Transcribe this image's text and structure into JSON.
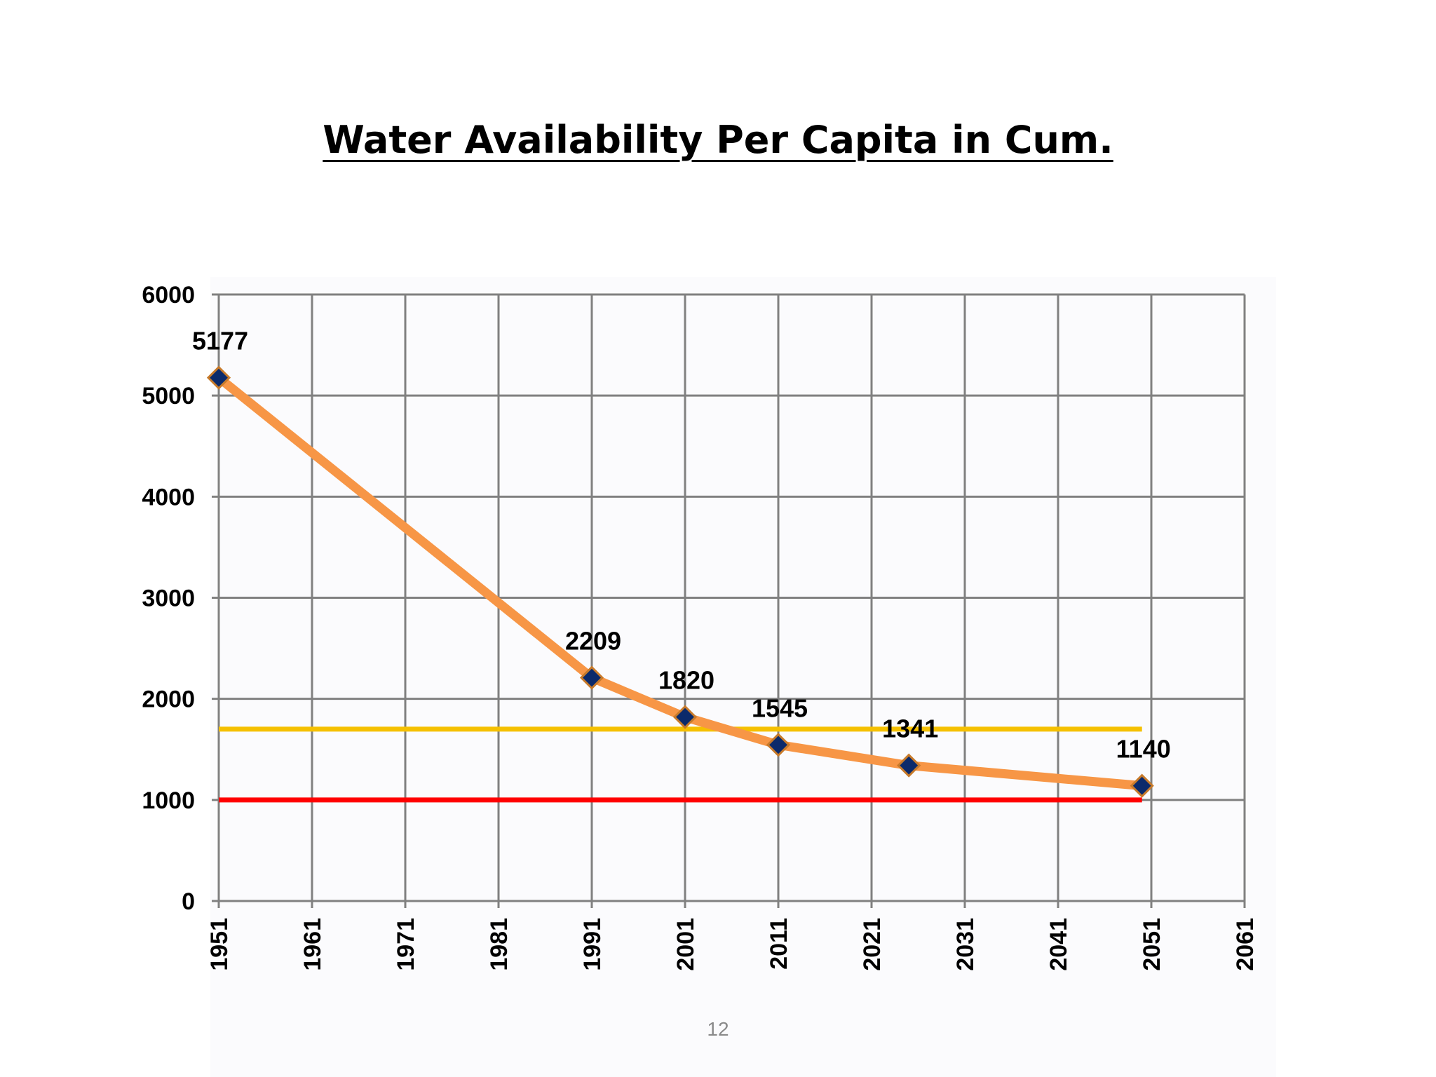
{
  "slide": {
    "title": "Water  Availability Per Capita in Cum.",
    "page_number": "12"
  },
  "chart_data": {
    "type": "line",
    "title": "Water  Availability Per Capita in Cum.",
    "xlabel": "",
    "ylabel": "",
    "x_ticks": [
      "1951",
      "1961",
      "1971",
      "1981",
      "1991",
      "2001",
      "2011",
      "2021",
      "2031",
      "2041",
      "2051",
      "2061"
    ],
    "y_ticks": [
      "0",
      "1000",
      "2000",
      "3000",
      "4000",
      "5000",
      "6000"
    ],
    "xlim": [
      1951,
      2061
    ],
    "ylim": [
      0,
      6000
    ],
    "grid": true,
    "series": [
      {
        "color": "#f79646",
        "marker_color": "#0b2a6b",
        "x": [
          1951,
          1991,
          2001,
          2011,
          2025,
          2050
        ],
        "y": [
          5177,
          2209,
          1820,
          1545,
          1341,
          1140
        ],
        "labels": [
          "5177",
          "2209",
          "1820",
          "1545",
          "1341",
          "1140"
        ]
      }
    ],
    "reference_lines": [
      {
        "y": 1700,
        "x_range": [
          1951,
          2050
        ],
        "color": "#f5c000"
      },
      {
        "y": 1000,
        "x_range": [
          1951,
          2050
        ],
        "color": "#ff0000"
      }
    ]
  }
}
